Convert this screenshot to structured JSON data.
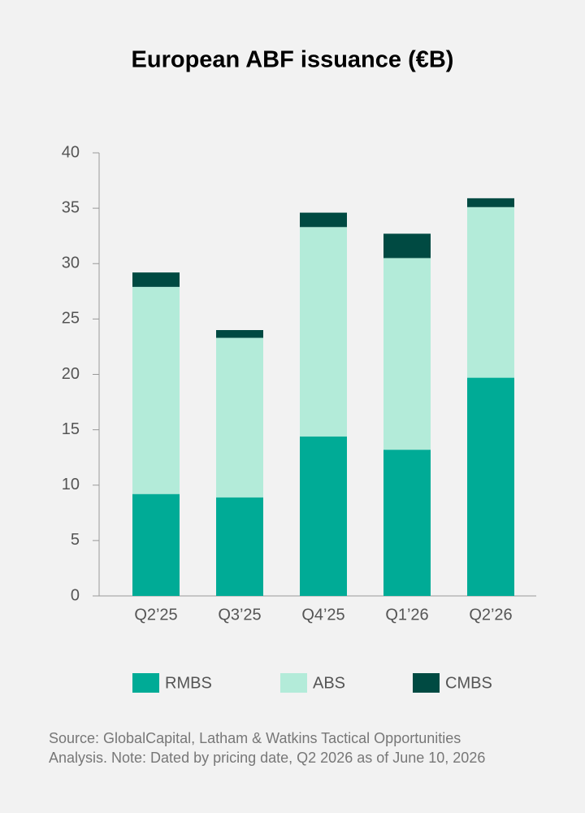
{
  "chart_data": {
    "type": "stacked_bar",
    "title": "European ABF issuance (€B)",
    "categories": [
      "Q2’25",
      "Q3’25",
      "Q4’25",
      "Q1’26",
      "Q2’26"
    ],
    "series": [
      {
        "name": "RMBS",
        "color": "#00ab96",
        "values": [
          9.2,
          8.9,
          14.4,
          13.2,
          19.7
        ]
      },
      {
        "name": "ABS",
        "color": "#b3ebd9",
        "values": [
          18.7,
          14.4,
          18.9,
          17.3,
          15.4
        ]
      },
      {
        "name": "CMBS",
        "color": "#004a42",
        "values": [
          1.3,
          0.7,
          1.3,
          2.2,
          0.8
        ]
      }
    ],
    "ylim": [
      0,
      40
    ],
    "yticks": [
      0,
      5,
      10,
      15,
      20,
      25,
      30,
      35,
      40
    ],
    "grid": false,
    "legend": "bottom",
    "source_lines": [
      "Source: GlobalCapital, Latham & Watkins Tactical Opportunities",
      "Analysis. Note: Dated by pricing date, Q2 2026 as of June 10, 2026"
    ]
  }
}
